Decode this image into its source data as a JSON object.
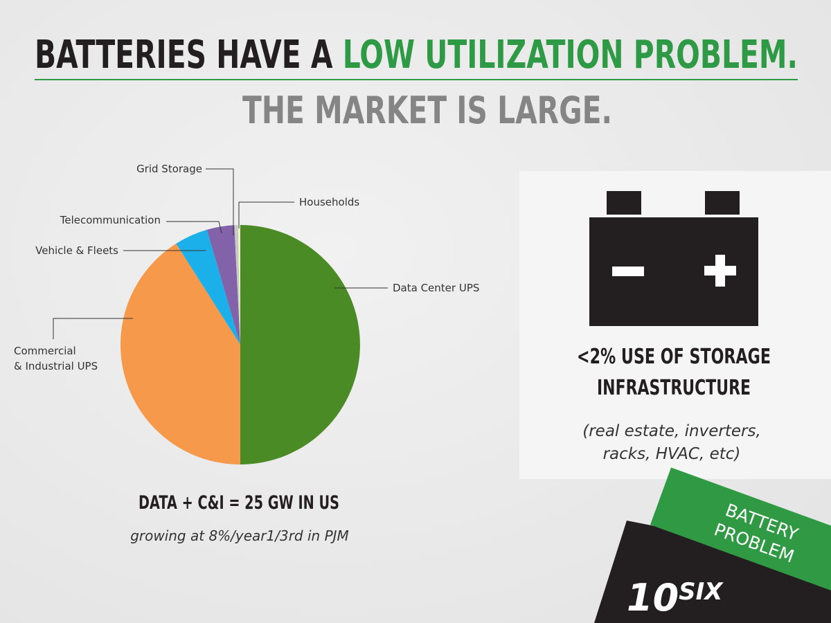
{
  "slide": {
    "title_black": "BATTERIES HAVE A ",
    "title_green": "LOW UTILIZATION PROBLEM.",
    "subtitle": "THE MARKET IS LARGE.",
    "caption": "DATA + C&I = 25 GW IN US",
    "caption_note": "growing at 8%/year1/3rd in PJM",
    "panel_line1": "<2% USE OF STORAGE",
    "panel_line2": "INFRASTRUCTURE",
    "panel_note1": "(real estate, inverters,",
    "panel_note2": "racks, HVAC, etc)",
    "badge_line1": "BATTERY",
    "badge_line2": "PROBLEM",
    "logo_main": "10",
    "logo_sup": "SIX"
  },
  "chart_data": {
    "type": "pie",
    "categories": [
      "Data Center UPS",
      "Commercial\n& Industrial  UPS",
      "Vehicle & Fleets",
      "Telecommunication",
      "Grid Storage",
      "Households"
    ],
    "values": [
      50,
      41,
      4.5,
      3.7,
      0.5,
      0.3
    ],
    "colors": [
      "#4a8b25",
      "#f6994a",
      "#1cb0ea",
      "#8262a8",
      "#c9c9c9",
      "#eef3c8"
    ]
  }
}
